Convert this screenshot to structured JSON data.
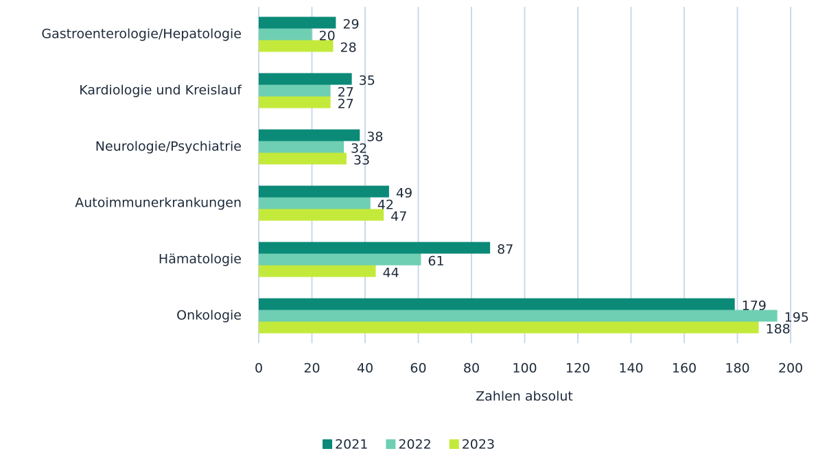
{
  "chart_data": {
    "type": "hbar",
    "categories": [
      "Gastroenterologie/Hepatologie",
      "Kardiologie und Kreislauf",
      "Neurologie/Psychiatrie",
      "Autoimmunerkrankungen",
      "Hämatologie",
      "Onkologie"
    ],
    "series": [
      {
        "name": "2021",
        "color": "#0b8a78",
        "values": [
          29,
          35,
          38,
          49,
          87,
          179
        ]
      },
      {
        "name": "2022",
        "color": "#6fcfb3",
        "values": [
          20,
          27,
          32,
          42,
          61,
          195
        ]
      },
      {
        "name": "2023",
        "color": "#c3ea3a",
        "values": [
          28,
          27,
          33,
          47,
          44,
          188
        ]
      }
    ],
    "xlabel": "Zahlen absolut",
    "xlim": [
      0,
      200
    ],
    "xticks": [
      0,
      20,
      40,
      60,
      80,
      100,
      120,
      140,
      160,
      180,
      200
    ],
    "grid": true,
    "legend": "bottom"
  }
}
